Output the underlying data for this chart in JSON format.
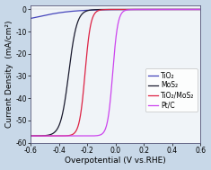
{
  "title": "",
  "xlabel": "Overpotential (V vs.RHE)",
  "ylabel": "Current Density  (mA/cm²)",
  "xlim": [
    -0.6,
    0.6
  ],
  "ylim": [
    -60,
    2
  ],
  "yticks": [
    0,
    -10,
    -20,
    -30,
    -40,
    -50,
    -60
  ],
  "xticks": [
    -0.6,
    -0.4,
    -0.2,
    0.0,
    0.2,
    0.4,
    0.6
  ],
  "background_color": "#c8d8e8",
  "plot_bg_color": "#f0f4f8",
  "curves": [
    {
      "label": "TiO₂",
      "color": "#4444bb",
      "x_onset": -0.56,
      "steepness": 8,
      "plateau": -7
    },
    {
      "label": "MoS₂",
      "color": "#1a1a2e",
      "x_onset": -0.33,
      "steepness": 35,
      "plateau": -57
    },
    {
      "label": "TiO₂/MoS₂",
      "color": "#dd2244",
      "x_onset": -0.215,
      "steepness": 50,
      "plateau": -57
    },
    {
      "label": "Pt/C",
      "color": "#cc44ee",
      "x_onset": -0.02,
      "steepness": 55,
      "plateau": -57
    }
  ],
  "fontsize_labels": 6.5,
  "fontsize_ticks": 5.5,
  "fontsize_legend": 5.5
}
